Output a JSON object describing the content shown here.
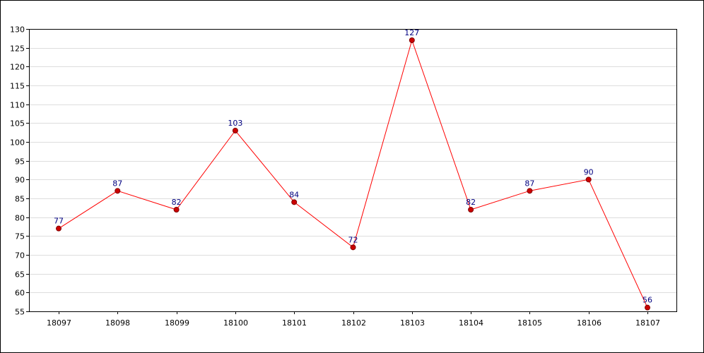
{
  "chart_data": {
    "type": "line",
    "title": "",
    "xlabel": "",
    "ylabel": "",
    "categories": [
      "18097",
      "18098",
      "18099",
      "18100",
      "18101",
      "18102",
      "18103",
      "18104",
      "18105",
      "18106",
      "18107"
    ],
    "series": [
      {
        "values": [
          77,
          87,
          82,
          103,
          84,
          72,
          127,
          82,
          87,
          90,
          56
        ],
        "color": "#ff0000",
        "marker_color": "#cc0000"
      }
    ],
    "ylim": [
      55,
      130
    ],
    "yticks": [
      55,
      60,
      65,
      70,
      75,
      80,
      85,
      90,
      95,
      100,
      105,
      110,
      115,
      120,
      125,
      130
    ],
    "grid": true,
    "data_labels": true,
    "colors": {
      "line": "#ff0000",
      "marker": "#cc0000",
      "data_label": "#000080",
      "grid": "#dddddd",
      "axis": "#000000"
    }
  }
}
